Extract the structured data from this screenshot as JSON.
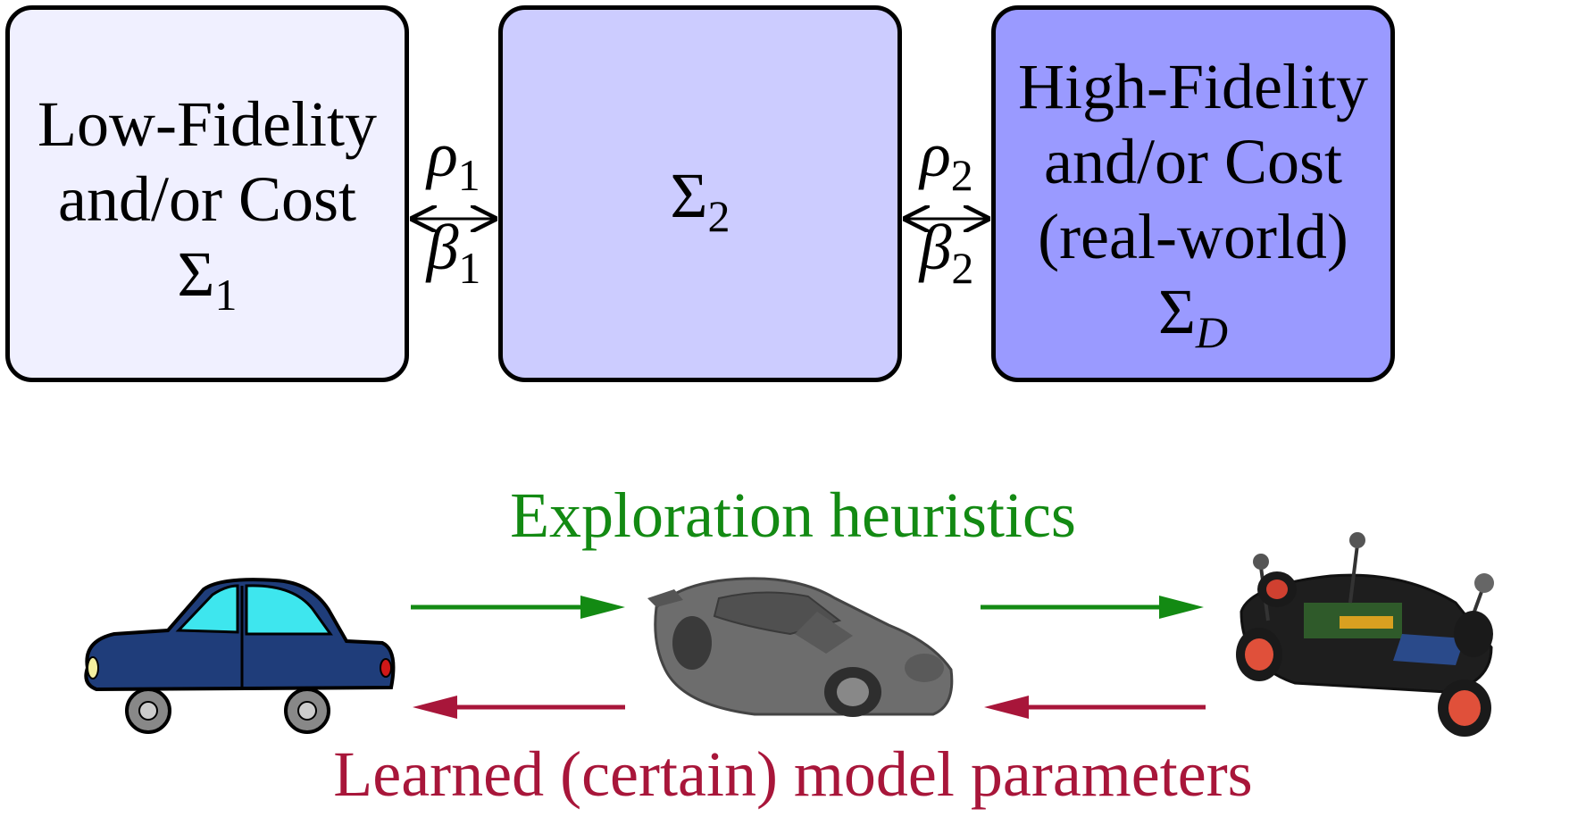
{
  "boxes": [
    {
      "lines": [
        "Low-Fidelity",
        "and/or Cost"
      ],
      "symbol": "Σ",
      "subscript": "1",
      "fill": "#f0f0ff"
    },
    {
      "lines": [],
      "symbol": "Σ",
      "subscript": "2",
      "fill": "#ccccff"
    },
    {
      "lines": [
        "High-Fidelity",
        "and/or Cost",
        "(real-world)"
      ],
      "symbol": "Σ",
      "subscript": "D",
      "fill": "#9a9aff"
    }
  ],
  "links": [
    {
      "rho": "ρ",
      "rho_sub": "1",
      "beta": "β",
      "beta_sub": "1"
    },
    {
      "rho": "ρ",
      "rho_sub": "2",
      "beta": "β",
      "beta_sub": "2"
    }
  ],
  "top_label": {
    "text": "Exploration heuristics",
    "color": "#138a13"
  },
  "bottom_label": {
    "text": "Learned (certain) model parameters",
    "color": "#a8163a"
  },
  "images": [
    "cartoon-car",
    "simulated-car",
    "real-rc-car"
  ]
}
